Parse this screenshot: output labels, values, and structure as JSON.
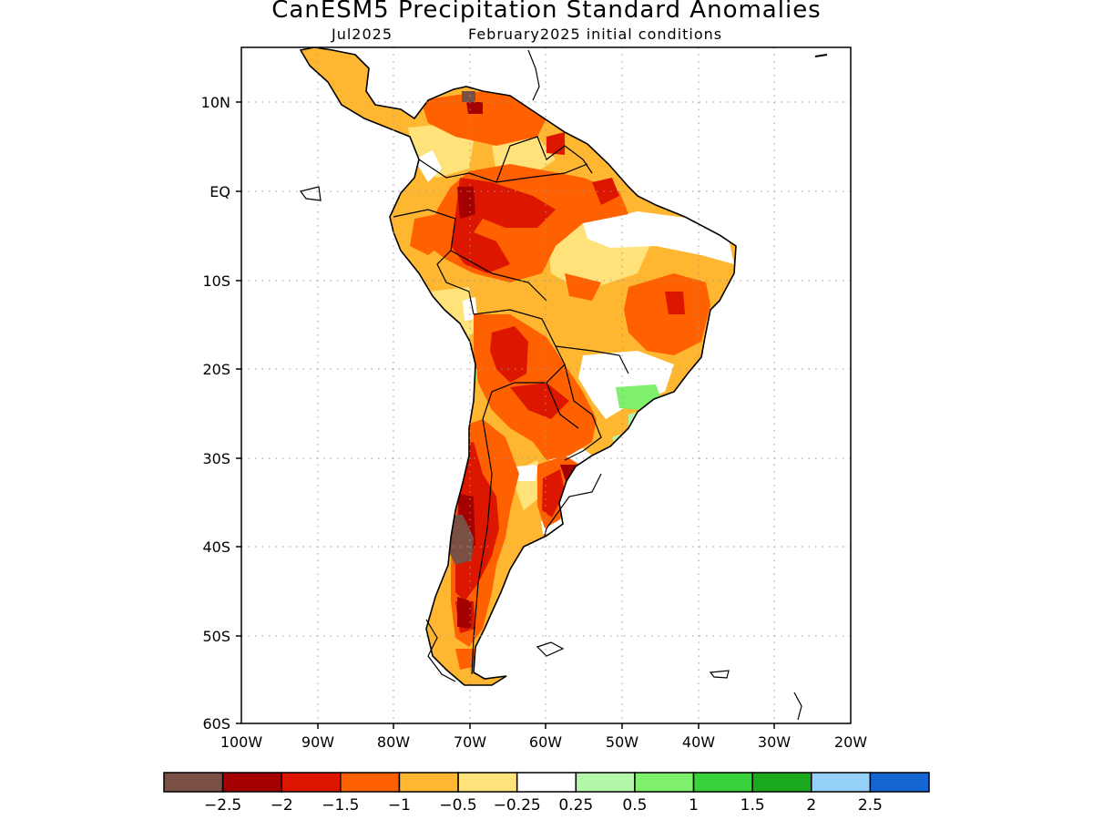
{
  "title": "CanESM5 Precipitation Standard Anomalies",
  "subtitle_left": "Jul2025",
  "subtitle_right": "February2025 initial conditions",
  "lat_labels": [
    "10N",
    "EQ",
    "10S",
    "20S",
    "30S",
    "40S",
    "50S",
    "60S"
  ],
  "lon_labels": [
    "100W",
    "90W",
    "80W",
    "70W",
    "60W",
    "50W",
    "40W",
    "30W",
    "20W"
  ],
  "colorbar": {
    "colors": [
      "#7a5045",
      "#a50000",
      "#dd1600",
      "#ff6000",
      "#ffb732",
      "#ffe27a",
      "#ffffff",
      "#b3f7a8",
      "#7ef06c",
      "#39d13c",
      "#1aa91c",
      "#94d0f7",
      "#1565d2"
    ],
    "tick_labels": [
      "-2.5",
      "-2",
      "-1.5",
      "-1",
      "-0.5",
      "-0.25",
      "0.25",
      "0.5",
      "1",
      "1.5",
      "2",
      "2.5"
    ]
  }
}
